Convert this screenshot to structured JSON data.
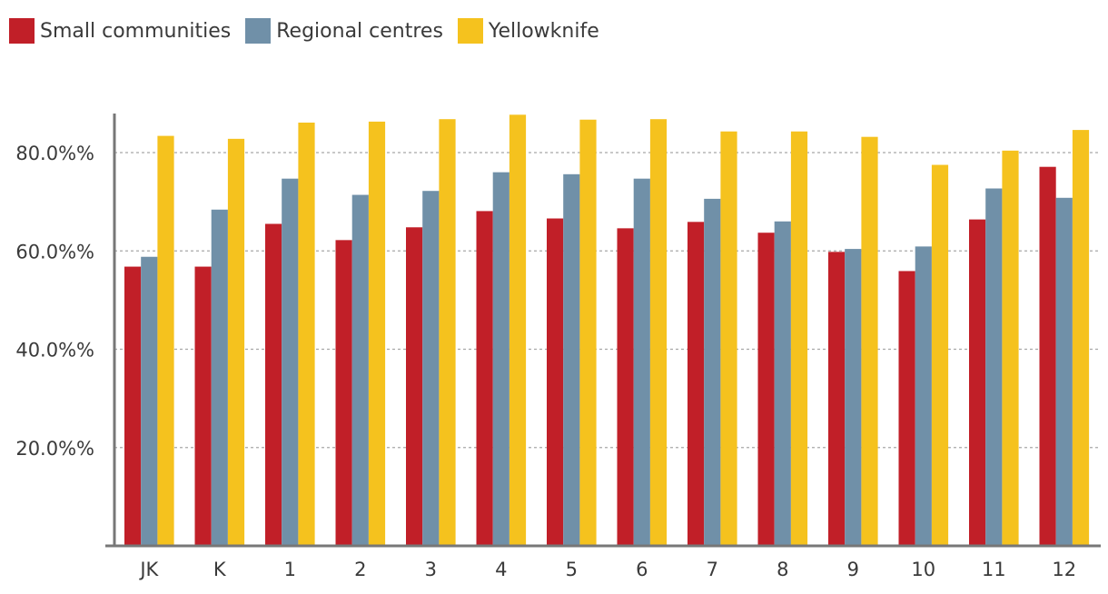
{
  "chart_data": {
    "type": "bar",
    "title": "",
    "xlabel": "",
    "ylabel": "",
    "categories": [
      "JK",
      "K",
      "1",
      "2",
      "3",
      "4",
      "5",
      "6",
      "7",
      "8",
      "9",
      "10",
      "11",
      "12"
    ],
    "series": [
      {
        "name": "Small communities",
        "color": "#c11f28",
        "values": [
          56.8,
          56.8,
          65.5,
          62.2,
          64.8,
          68.1,
          66.6,
          64.6,
          65.9,
          63.7,
          59.8,
          55.9,
          66.4,
          77.1
        ]
      },
      {
        "name": "Regional centres",
        "color": "#7090a8",
        "values": [
          58.8,
          68.4,
          74.7,
          71.4,
          72.2,
          76.0,
          75.6,
          74.7,
          70.6,
          66.0,
          60.4,
          60.9,
          72.7,
          70.8
        ]
      },
      {
        "name": "Yellowknife",
        "color": "#f5c21e",
        "values": [
          83.4,
          82.8,
          86.1,
          86.3,
          86.8,
          87.7,
          86.7,
          86.8,
          84.3,
          84.3,
          83.2,
          77.5,
          80.4,
          84.6
        ]
      }
    ],
    "ylim": [
      0,
      87.7
    ],
    "yticks": [
      20,
      40,
      60,
      80
    ],
    "ytick_labels": [
      "20.0%%",
      "40.0%%",
      "60.0%%",
      "80.0%%"
    ],
    "grid": true,
    "legend_position": "top-left"
  }
}
